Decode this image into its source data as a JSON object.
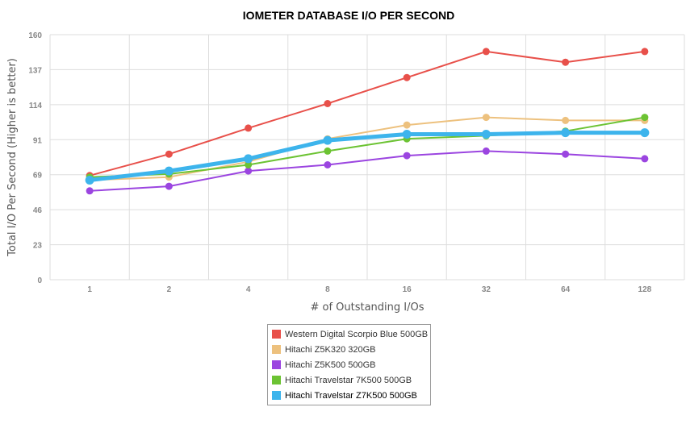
{
  "chart_data": {
    "type": "line",
    "title": "IOMETER DATABASE I/O PER SECOND",
    "xlabel": "# of Outstanding I/Os",
    "ylabel": "Total I/O Per Second (Higher is better)",
    "categories": [
      "1",
      "2",
      "4",
      "8",
      "16",
      "32",
      "64",
      "128"
    ],
    "yticks": [
      "0",
      "23",
      "46",
      "69",
      "91",
      "114",
      "137",
      "160"
    ],
    "ylim": [
      0,
      160
    ],
    "grid": true,
    "legend_position": "bottom",
    "series": [
      {
        "name": "Western Digital Scorpio Blue 500GB",
        "color": "#e8504a",
        "values": [
          68,
          82,
          99,
          115,
          132,
          149,
          142,
          149
        ]
      },
      {
        "name": "Hitachi Z5K320 320GB",
        "color": "#edc17e",
        "values": [
          65,
          67,
          77,
          92,
          101,
          106,
          104,
          104
        ]
      },
      {
        "name": "Hitachi Z5K500 500GB",
        "color": "#9b45e0",
        "values": [
          58,
          61,
          71,
          75,
          81,
          84,
          82,
          79
        ]
      },
      {
        "name": "Hitachi Travelstar 7K500 500GB",
        "color": "#6cc333",
        "values": [
          67,
          69,
          75,
          84,
          92,
          94,
          97,
          106
        ]
      },
      {
        "name": "Hitachi Travelstar Z7K500 500GB",
        "color": "#3db4ec",
        "values": [
          65,
          71,
          79,
          91,
          95,
          95,
          96,
          96
        ]
      }
    ]
  }
}
